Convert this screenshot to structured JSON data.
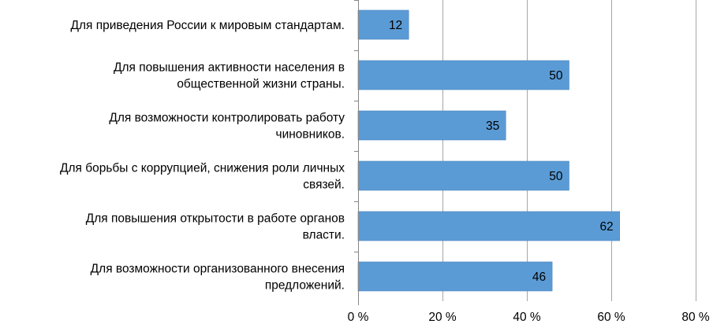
{
  "chart_data": {
    "type": "bar",
    "orientation": "horizontal",
    "categories": [
      [
        "Для приведения России к мировым стандартам."
      ],
      [
        "Для повышения активности населения в",
        "общественной жизни страны."
      ],
      [
        "Для возможности контролировать работу",
        "чиновников."
      ],
      [
        "Для борьбы с коррупцией, снижения роли личных",
        "связей."
      ],
      [
        "Для повышения открытости в работе органов",
        "власти."
      ],
      [
        "Для возможности организованного внесения",
        "предложений."
      ]
    ],
    "values": [
      12,
      50,
      35,
      50,
      62,
      46
    ],
    "data_labels": [
      "12",
      "50",
      "35",
      "50",
      "62",
      "46"
    ],
    "xlim": [
      0,
      80
    ],
    "x_ticks": [
      0,
      20,
      40,
      60,
      80
    ],
    "x_tick_labels": [
      "0 %",
      "20 %",
      "40 %",
      "60 %",
      "80 %"
    ],
    "grid": "vertical",
    "legend": "none",
    "colors": {
      "bar": "#5b9bd5",
      "bar_edge": "#4a86c0",
      "grid": "#a6a6a6",
      "axis": "#868686",
      "text": "#000000"
    }
  }
}
